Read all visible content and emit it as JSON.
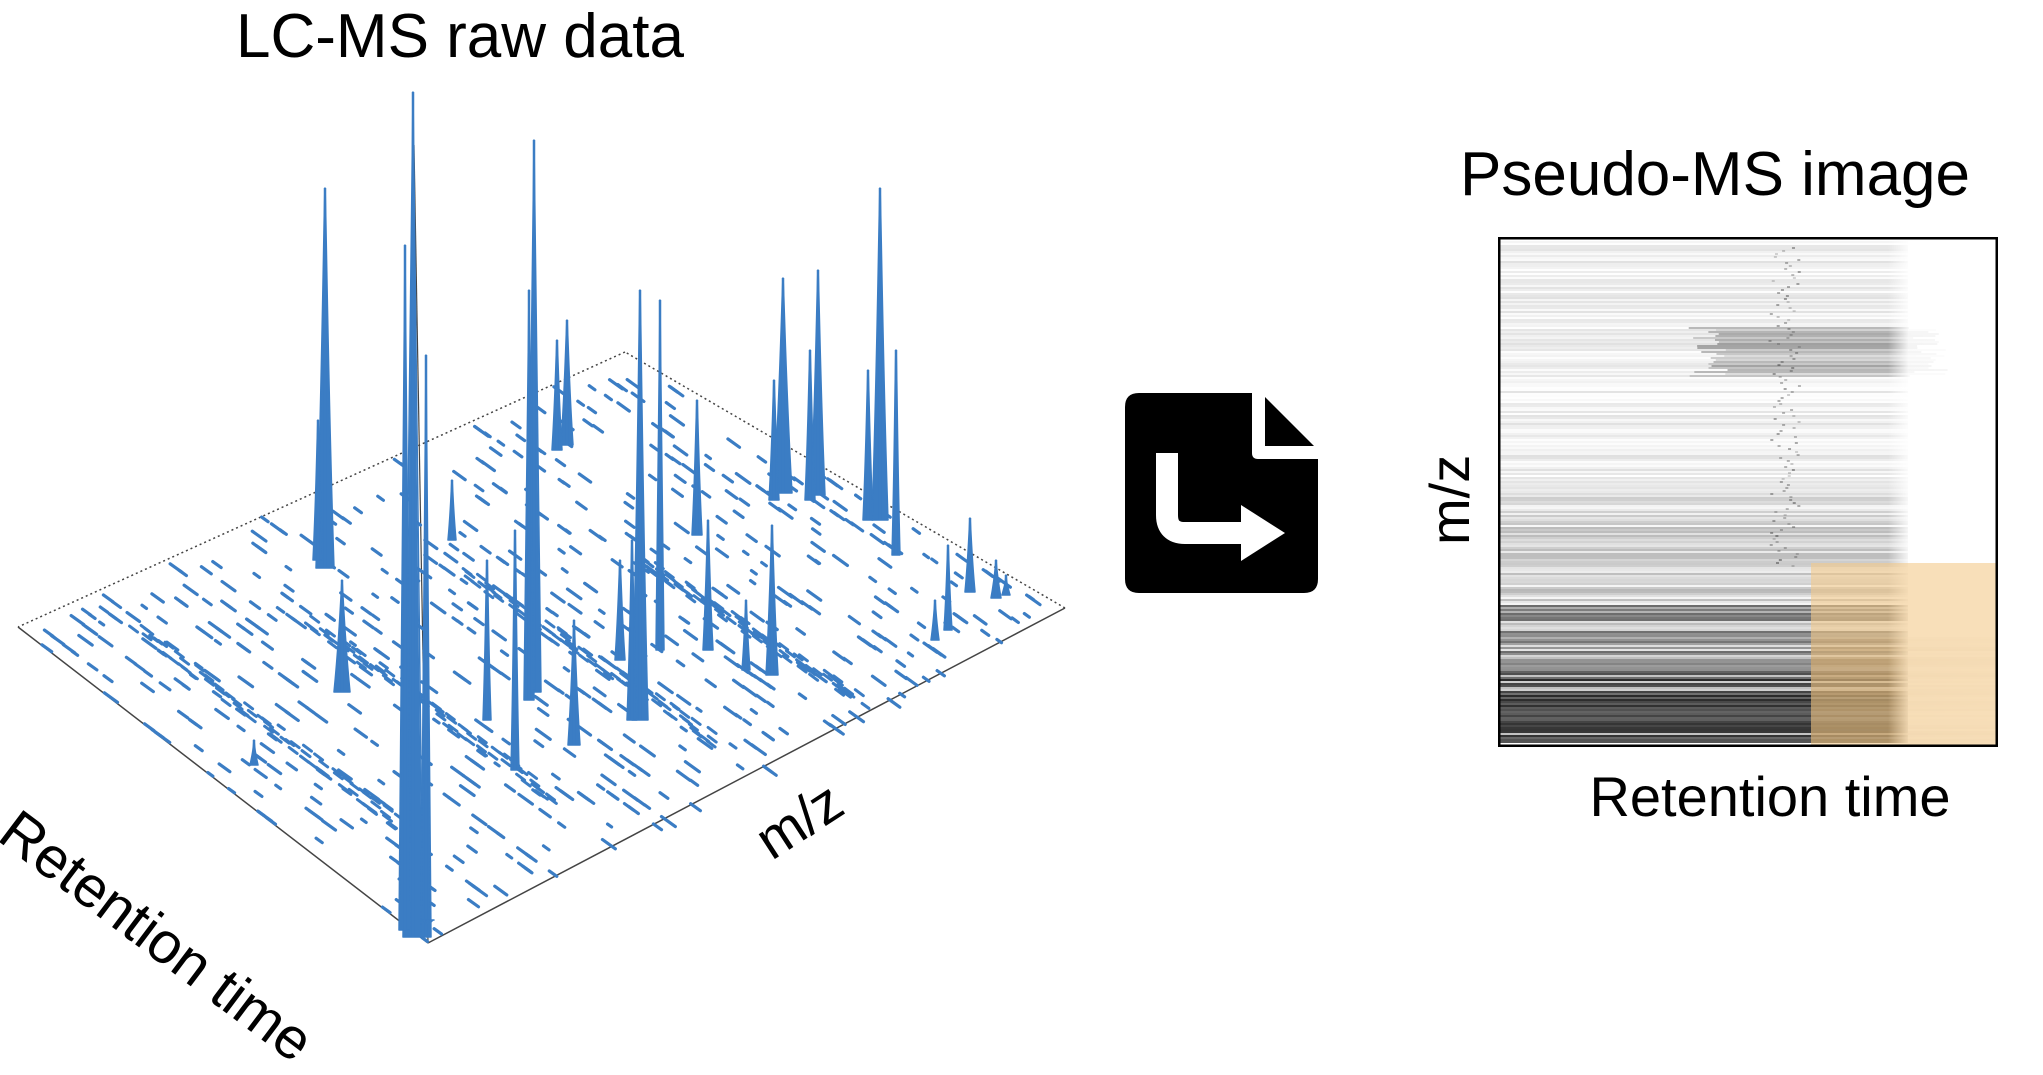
{
  "left_panel": {
    "title": "LC-MS raw data",
    "x_axis_label": "Retention time",
    "y_axis_label": "m/z",
    "peak_color": "#3b7dc4"
  },
  "conversion_icon": {
    "icon": "file-export-icon",
    "color": "#000000"
  },
  "right_panel": {
    "title": "Pseudo-MS image",
    "x_axis_label": "Retention time",
    "y_axis_label": "m/z",
    "highlight_color": "#f3c98b"
  }
}
